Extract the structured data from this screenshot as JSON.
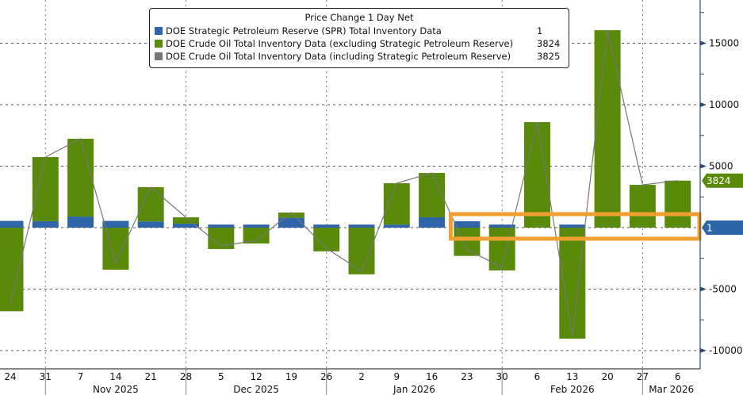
{
  "chart_data": {
    "type": "bar",
    "stacked": true,
    "title": "Price Change 1 Day Net",
    "xlabel": "",
    "ylabel": "",
    "ylim": [
      -11000,
      18500
    ],
    "yticks": [
      15000,
      10000,
      5000,
      -5000,
      -10000
    ],
    "grid": true,
    "legend_position": "top-center",
    "categories": [
      "24",
      "31",
      "7",
      "14",
      "21",
      "28",
      "5",
      "12",
      "19",
      "26",
      "2",
      "9",
      "16",
      "23",
      "30",
      "6",
      "13",
      "20",
      "27",
      "6"
    ],
    "month_labels": [
      {
        "label": "Nov 2025",
        "after_index": 1,
        "until_index": 5
      },
      {
        "label": "Dec 2025",
        "after_index": 5,
        "until_index": 9
      },
      {
        "label": "Jan 2026",
        "after_index": 9,
        "until_index": 14
      },
      {
        "label": "Feb 2026",
        "after_index": 14,
        "until_index": 18
      },
      {
        "label": "Mar 2026",
        "after_index": 18,
        "until_index": 19
      }
    ],
    "month_dividers_before_index": [
      1,
      5,
      9,
      14,
      18
    ],
    "series": [
      {
        "name": "DOE Strategic Petroleum Reserve (SPR) Total Inventory Data",
        "color": "#2e64a8",
        "kind": "bar",
        "last_value": "1",
        "values": [
          550,
          520,
          900,
          550,
          500,
          320,
          250,
          250,
          800,
          250,
          250,
          250,
          840,
          520,
          250,
          0,
          250,
          0,
          0,
          1
        ]
      },
      {
        "name": "DOE Crude Oil Total Inventory Data (excluding Strategic Petroleum Reserve)",
        "color": "#5a8a0a",
        "kind": "bar",
        "last_value": "3824",
        "values": [
          -6800,
          5220,
          6330,
          -3420,
          2790,
          520,
          -1740,
          -1290,
          430,
          -1930,
          -3800,
          3360,
          3610,
          -2300,
          -3480,
          8580,
          -9030,
          16060,
          3480,
          3824
        ]
      },
      {
        "name": "DOE Crude Oil Total Inventory Data (including Strategic Petroleum Reserve)",
        "color": "#777777",
        "kind": "line",
        "last_value": "3825",
        "values": [
          -6250,
          5740,
          7230,
          -2870,
          3290,
          840,
          -1490,
          -1040,
          1230,
          -1680,
          -3550,
          3610,
          4450,
          -1780,
          -3230,
          8580,
          -8780,
          16060,
          3480,
          3825
        ]
      }
    ],
    "right_tags": [
      {
        "series_index": 1,
        "text": "3824"
      },
      {
        "series_index": 0,
        "text": "1"
      }
    ],
    "highlight_box": {
      "from_index": 13,
      "to_index": 19,
      "y_range": [
        -900,
        1100
      ],
      "color": "#f0a030"
    }
  }
}
